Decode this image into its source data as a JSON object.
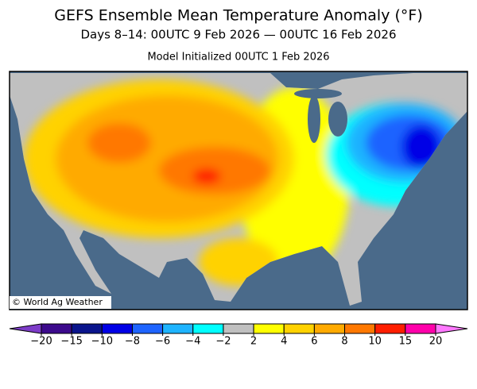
{
  "header": {
    "title": "GEFS Ensemble Mean Temperature Anomaly (°F)",
    "subtitle": "Days 8–14: 00UTC 9 Feb 2026 — 00UTC 16 Feb 2026",
    "initialized": "Model Initialized 00UTC 1 Feb 2026"
  },
  "map": {
    "credit": "© World Ag Weather"
  },
  "legend": {
    "colors": [
      "#7d3cc8",
      "#3c0a8c",
      "#0a148c",
      "#0000e6",
      "#1e64ff",
      "#1eb4ff",
      "#00ffff",
      "#c0c0c0",
      "#ffff00",
      "#ffd200",
      "#ffaa00",
      "#ff7800",
      "#ff1e00",
      "#ff00aa",
      "#ff78ff"
    ],
    "ticks": [
      {
        "value": -20,
        "label": "−20"
      },
      {
        "value": -15,
        "label": "−15"
      },
      {
        "value": -10,
        "label": "−10"
      },
      {
        "value": -8,
        "label": "−8"
      },
      {
        "value": -6,
        "label": "−6"
      },
      {
        "value": -4,
        "label": "−4"
      },
      {
        "value": -2,
        "label": "−2"
      },
      2,
      4,
      6,
      8,
      10,
      15,
      20
    ]
  }
}
